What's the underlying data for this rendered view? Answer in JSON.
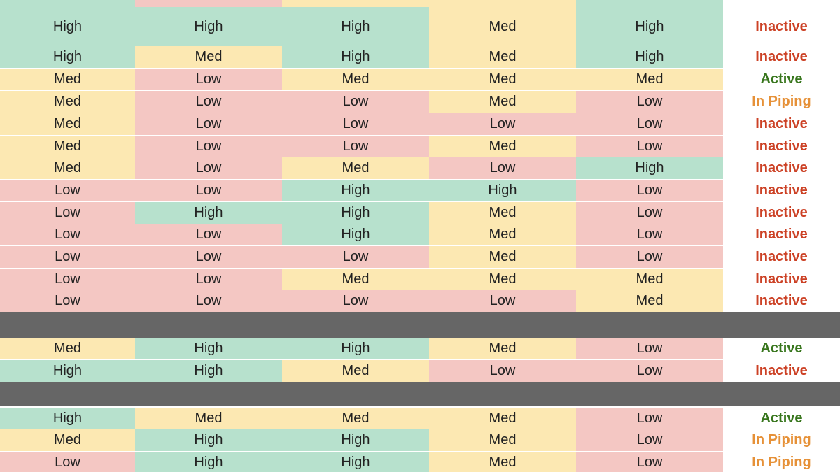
{
  "colors": {
    "high": "#b7e1cd",
    "med": "#fce8b2",
    "low": "#f4c7c3",
    "divider": "#666666",
    "inactive": "#cc4125",
    "active": "#38761d",
    "in_piping": "#e69138"
  },
  "table": {
    "groups": [
      {
        "rows": [
          {
            "cells": [
              "High",
              "High",
              "High",
              "Med",
              "High"
            ],
            "status": "Inactive"
          },
          {
            "cells": [
              "High",
              "Med",
              "High",
              "Med",
              "High"
            ],
            "status": "Inactive"
          },
          {
            "cells": [
              "Med",
              "Low",
              "Med",
              "Med",
              "Med"
            ],
            "status": "Active"
          },
          {
            "cells": [
              "Med",
              "Low",
              "Low",
              "Med",
              "Low"
            ],
            "status": "In Piping"
          },
          {
            "cells": [
              "Med",
              "Low",
              "Low",
              "Low",
              "Low"
            ],
            "status": "Inactive"
          },
          {
            "cells": [
              "Med",
              "Low",
              "Low",
              "Med",
              "Low"
            ],
            "status": "Inactive"
          },
          {
            "cells": [
              "Med",
              "Low",
              "Med",
              "Low",
              "High"
            ],
            "status": "Inactive"
          },
          {
            "cells": [
              "Low",
              "Low",
              "High",
              "High",
              "Low"
            ],
            "status": "Inactive"
          },
          {
            "cells": [
              "Low",
              "High",
              "High",
              "Med",
              "Low"
            ],
            "status": "Inactive"
          },
          {
            "cells": [
              "Low",
              "Low",
              "High",
              "Med",
              "Low"
            ],
            "status": "Inactive"
          },
          {
            "cells": [
              "Low",
              "Low",
              "Low",
              "Med",
              "Low"
            ],
            "status": "Inactive"
          },
          {
            "cells": [
              "Low",
              "Low",
              "Med",
              "Med",
              "Med"
            ],
            "status": "Inactive"
          },
          {
            "cells": [
              "Low",
              "Low",
              "Low",
              "Low",
              "Med"
            ],
            "status": "Inactive"
          }
        ]
      },
      {
        "rows": [
          {
            "cells": [
              "Med",
              "High",
              "High",
              "Med",
              "Low"
            ],
            "status": "Active"
          },
          {
            "cells": [
              "High",
              "High",
              "Med",
              "Low",
              "Low"
            ],
            "status": "Inactive"
          }
        ]
      },
      {
        "rows": [
          {
            "cells": [
              "High",
              "Med",
              "Med",
              "Med",
              "Low"
            ],
            "status": "Active"
          },
          {
            "cells": [
              "Med",
              "High",
              "High",
              "Med",
              "Low"
            ],
            "status": "In Piping"
          },
          {
            "cells": [
              "Low",
              "High",
              "High",
              "Med",
              "Low"
            ],
            "status": "In Piping"
          }
        ]
      }
    ]
  }
}
